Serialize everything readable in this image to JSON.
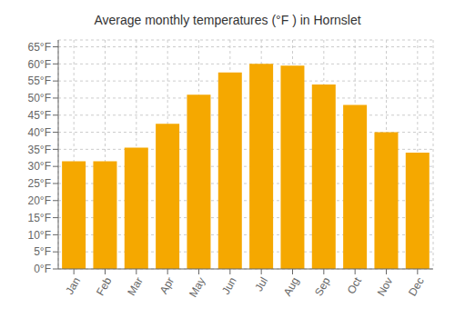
{
  "chart_data": {
    "type": "bar",
    "title": "Average monthly temperatures (°F ) in Hornslet",
    "categories": [
      "Jan",
      "Feb",
      "Mar",
      "Apr",
      "May",
      "Jun",
      "Jul",
      "Aug",
      "Sep",
      "Oct",
      "Nov",
      "Dec"
    ],
    "values": [
      31.5,
      31.5,
      35.5,
      42.5,
      51.0,
      57.5,
      60.0,
      59.5,
      54.0,
      48.0,
      40.0,
      34.0
    ],
    "color": "#F5A800",
    "ylim": [
      0,
      67
    ],
    "yticks": [
      {
        "value": 0,
        "label": "0°F"
      },
      {
        "value": 5,
        "label": "5°F"
      },
      {
        "value": 10,
        "label": "10°F"
      },
      {
        "value": 15,
        "label": "15°F"
      },
      {
        "value": 20,
        "label": "20°F"
      },
      {
        "value": 25,
        "label": "25°F"
      },
      {
        "value": 30,
        "label": "30°F"
      },
      {
        "value": 35,
        "label": "35°F"
      },
      {
        "value": 40,
        "label": "40°F"
      },
      {
        "value": 45,
        "label": "45°F"
      },
      {
        "value": 50,
        "label": "50°F"
      },
      {
        "value": 55,
        "label": "55°F"
      },
      {
        "value": 60,
        "label": "60°F"
      },
      {
        "value": 65,
        "label": "65°F"
      }
    ],
    "grid": true
  }
}
